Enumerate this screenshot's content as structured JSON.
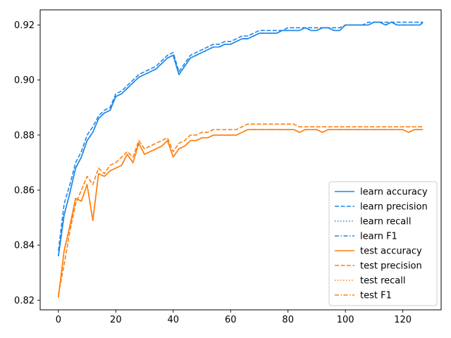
{
  "chart_data": {
    "type": "line",
    "title": "",
    "xlabel": "",
    "ylabel": "",
    "xlim": [
      -6.35,
      133.35
    ],
    "ylim": [
      0.8165,
      0.9255
    ],
    "xticks": [
      0,
      20,
      40,
      60,
      80,
      100,
      120
    ],
    "yticks": [
      0.82,
      0.84,
      0.86,
      0.88,
      0.9,
      0.92
    ],
    "ytick_labels": [
      "0.82",
      "0.84",
      "0.86",
      "0.88",
      "0.90",
      "0.92"
    ],
    "xtick_labels": [
      "0",
      "20",
      "40",
      "60",
      "80",
      "100",
      "120"
    ],
    "grid": false,
    "legend_position": "lower-right",
    "colors": {
      "learn": "#1f87e8",
      "test": "#ff7f0e"
    },
    "x": [
      0,
      2,
      4,
      6,
      8,
      10,
      12,
      14,
      16,
      18,
      20,
      22,
      24,
      26,
      28,
      30,
      32,
      34,
      36,
      38,
      40,
      42,
      44,
      46,
      48,
      50,
      52,
      54,
      56,
      58,
      60,
      62,
      64,
      66,
      68,
      70,
      72,
      74,
      76,
      78,
      80,
      82,
      84,
      86,
      88,
      90,
      92,
      94,
      96,
      98,
      100,
      102,
      104,
      106,
      108,
      110,
      112,
      114,
      116,
      118,
      120,
      122,
      124,
      126,
      127
    ],
    "series": [
      {
        "name": "learn accuracy",
        "group": "learn",
        "dash": "solid",
        "values": [
          0.836,
          0.851,
          0.859,
          0.868,
          0.872,
          0.878,
          0.881,
          0.886,
          0.888,
          0.889,
          0.894,
          0.895,
          0.897,
          0.899,
          0.901,
          0.902,
          0.903,
          0.904,
          0.906,
          0.908,
          0.909,
          0.902,
          0.905,
          0.908,
          0.909,
          0.91,
          0.911,
          0.912,
          0.912,
          0.913,
          0.913,
          0.914,
          0.915,
          0.915,
          0.916,
          0.917,
          0.917,
          0.917,
          0.917,
          0.918,
          0.918,
          0.918,
          0.918,
          0.919,
          0.918,
          0.918,
          0.919,
          0.919,
          0.918,
          0.918,
          0.92,
          0.92,
          0.92,
          0.92,
          0.92,
          0.921,
          0.921,
          0.92,
          0.921,
          0.92,
          0.92,
          0.92,
          0.92,
          0.92,
          0.921
        ]
      },
      {
        "name": "learn precision",
        "group": "learn",
        "dash": "dashed",
        "values": [
          0.838,
          0.855,
          0.862,
          0.87,
          0.874,
          0.88,
          0.883,
          0.887,
          0.889,
          0.89,
          0.895,
          0.896,
          0.898,
          0.9,
          0.902,
          0.903,
          0.904,
          0.905,
          0.907,
          0.909,
          0.91,
          0.903,
          0.906,
          0.909,
          0.91,
          0.911,
          0.912,
          0.913,
          0.913,
          0.914,
          0.914,
          0.915,
          0.916,
          0.916,
          0.917,
          0.918,
          0.918,
          0.918,
          0.918,
          0.918,
          0.919,
          0.919,
          0.919,
          0.919,
          0.919,
          0.919,
          0.919,
          0.919,
          0.919,
          0.919,
          0.92,
          0.92,
          0.92,
          0.92,
          0.921,
          0.921,
          0.921,
          0.921,
          0.921,
          0.921,
          0.921,
          0.921,
          0.921,
          0.921,
          0.921
        ]
      },
      {
        "name": "learn recall",
        "group": "learn",
        "dash": "dotted",
        "values": [
          0.836,
          0.851,
          0.859,
          0.868,
          0.872,
          0.878,
          0.881,
          0.886,
          0.888,
          0.889,
          0.894,
          0.895,
          0.897,
          0.899,
          0.901,
          0.902,
          0.903,
          0.904,
          0.906,
          0.908,
          0.909,
          0.902,
          0.905,
          0.908,
          0.909,
          0.91,
          0.911,
          0.912,
          0.912,
          0.913,
          0.913,
          0.914,
          0.915,
          0.915,
          0.916,
          0.917,
          0.917,
          0.917,
          0.917,
          0.918,
          0.918,
          0.918,
          0.918,
          0.919,
          0.918,
          0.918,
          0.919,
          0.919,
          0.918,
          0.918,
          0.92,
          0.92,
          0.92,
          0.92,
          0.92,
          0.921,
          0.921,
          0.92,
          0.921,
          0.92,
          0.92,
          0.92,
          0.92,
          0.92,
          0.921
        ]
      },
      {
        "name": "learn F1",
        "group": "learn",
        "dash": "dashdot",
        "values": [
          0.836,
          0.851,
          0.859,
          0.868,
          0.872,
          0.878,
          0.881,
          0.886,
          0.888,
          0.889,
          0.894,
          0.895,
          0.897,
          0.899,
          0.901,
          0.902,
          0.903,
          0.904,
          0.906,
          0.908,
          0.909,
          0.902,
          0.905,
          0.908,
          0.909,
          0.91,
          0.911,
          0.912,
          0.912,
          0.913,
          0.913,
          0.914,
          0.915,
          0.915,
          0.916,
          0.917,
          0.917,
          0.917,
          0.917,
          0.918,
          0.918,
          0.918,
          0.918,
          0.919,
          0.918,
          0.918,
          0.919,
          0.919,
          0.918,
          0.918,
          0.92,
          0.92,
          0.92,
          0.92,
          0.92,
          0.921,
          0.921,
          0.92,
          0.921,
          0.92,
          0.92,
          0.92,
          0.92,
          0.92,
          0.921
        ]
      },
      {
        "name": "test accuracy",
        "group": "test",
        "dash": "solid",
        "values": [
          0.821,
          0.838,
          0.847,
          0.857,
          0.856,
          0.862,
          0.849,
          0.866,
          0.865,
          0.867,
          0.868,
          0.869,
          0.873,
          0.87,
          0.877,
          0.873,
          0.874,
          0.875,
          0.876,
          0.878,
          0.872,
          0.875,
          0.876,
          0.878,
          0.878,
          0.879,
          0.879,
          0.88,
          0.88,
          0.88,
          0.88,
          0.88,
          0.881,
          0.882,
          0.882,
          0.882,
          0.882,
          0.882,
          0.882,
          0.882,
          0.882,
          0.882,
          0.881,
          0.882,
          0.882,
          0.882,
          0.881,
          0.882,
          0.882,
          0.882,
          0.882,
          0.882,
          0.882,
          0.882,
          0.882,
          0.882,
          0.882,
          0.882,
          0.882,
          0.882,
          0.882,
          0.881,
          0.882,
          0.882,
          0.882
        ]
      },
      {
        "name": "test precision",
        "group": "test",
        "dash": "dashed",
        "values": [
          0.822,
          0.833,
          0.845,
          0.855,
          0.86,
          0.865,
          0.862,
          0.868,
          0.866,
          0.869,
          0.87,
          0.872,
          0.874,
          0.872,
          0.878,
          0.875,
          0.876,
          0.877,
          0.878,
          0.879,
          0.874,
          0.877,
          0.878,
          0.88,
          0.88,
          0.881,
          0.881,
          0.882,
          0.882,
          0.882,
          0.882,
          0.882,
          0.883,
          0.884,
          0.884,
          0.884,
          0.884,
          0.884,
          0.884,
          0.884,
          0.884,
          0.884,
          0.883,
          0.883,
          0.883,
          0.883,
          0.883,
          0.883,
          0.883,
          0.883,
          0.883,
          0.883,
          0.883,
          0.883,
          0.883,
          0.883,
          0.883,
          0.883,
          0.883,
          0.883,
          0.883,
          0.883,
          0.883,
          0.883,
          0.883
        ]
      },
      {
        "name": "test recall",
        "group": "test",
        "dash": "dotted",
        "values": [
          0.821,
          0.838,
          0.847,
          0.857,
          0.856,
          0.862,
          0.849,
          0.866,
          0.865,
          0.867,
          0.868,
          0.869,
          0.873,
          0.87,
          0.877,
          0.873,
          0.874,
          0.875,
          0.876,
          0.878,
          0.872,
          0.875,
          0.876,
          0.878,
          0.878,
          0.879,
          0.879,
          0.88,
          0.88,
          0.88,
          0.88,
          0.88,
          0.881,
          0.882,
          0.882,
          0.882,
          0.882,
          0.882,
          0.882,
          0.882,
          0.882,
          0.882,
          0.881,
          0.882,
          0.882,
          0.882,
          0.881,
          0.882,
          0.882,
          0.882,
          0.882,
          0.882,
          0.882,
          0.882,
          0.882,
          0.882,
          0.882,
          0.882,
          0.882,
          0.882,
          0.882,
          0.881,
          0.882,
          0.882,
          0.882
        ]
      },
      {
        "name": "test F1",
        "group": "test",
        "dash": "dashdot",
        "values": [
          0.821,
          0.838,
          0.847,
          0.857,
          0.856,
          0.862,
          0.849,
          0.866,
          0.865,
          0.867,
          0.868,
          0.869,
          0.873,
          0.87,
          0.877,
          0.873,
          0.874,
          0.875,
          0.876,
          0.878,
          0.872,
          0.875,
          0.876,
          0.878,
          0.878,
          0.879,
          0.879,
          0.88,
          0.88,
          0.88,
          0.88,
          0.88,
          0.881,
          0.882,
          0.882,
          0.882,
          0.882,
          0.882,
          0.882,
          0.882,
          0.882,
          0.882,
          0.881,
          0.882,
          0.882,
          0.882,
          0.881,
          0.882,
          0.882,
          0.882,
          0.882,
          0.882,
          0.882,
          0.882,
          0.882,
          0.882,
          0.882,
          0.882,
          0.882,
          0.882,
          0.882,
          0.881,
          0.882,
          0.882,
          0.882
        ]
      }
    ]
  }
}
